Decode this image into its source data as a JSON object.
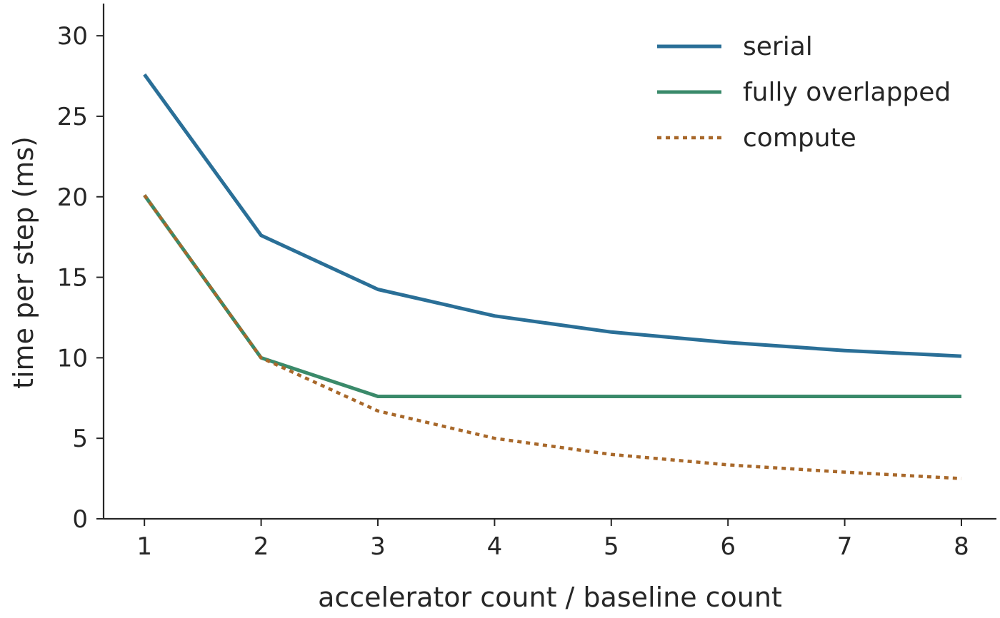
{
  "chart_data": {
    "type": "line",
    "title": "",
    "xlabel": "accelerator count / baseline count",
    "ylabel": "time per step (ms)",
    "x": [
      1,
      2,
      3,
      4,
      5,
      6,
      7,
      8
    ],
    "xlim": [
      0.65,
      8.3
    ],
    "ylim": [
      0,
      32
    ],
    "xticks": [
      1,
      2,
      3,
      4,
      5,
      6,
      7,
      8
    ],
    "yticks": [
      0,
      5,
      10,
      15,
      20,
      25,
      30
    ],
    "grid": false,
    "legend_position": "top-right",
    "series": [
      {
        "name": "serial",
        "color": "#2a6f97",
        "style": "solid",
        "values": [
          27.6,
          17.6,
          14.25,
          12.6,
          11.6,
          10.95,
          10.45,
          10.1
        ]
      },
      {
        "name": "fully overlapped",
        "color": "#3a8a6a",
        "style": "solid",
        "values": [
          20.1,
          10.0,
          7.6,
          7.6,
          7.6,
          7.6,
          7.6,
          7.6
        ]
      },
      {
        "name": "compute",
        "color": "#a8682a",
        "style": "dotted",
        "values": [
          20.1,
          10.0,
          6.7,
          5.0,
          4.0,
          3.35,
          2.9,
          2.5
        ]
      }
    ]
  }
}
